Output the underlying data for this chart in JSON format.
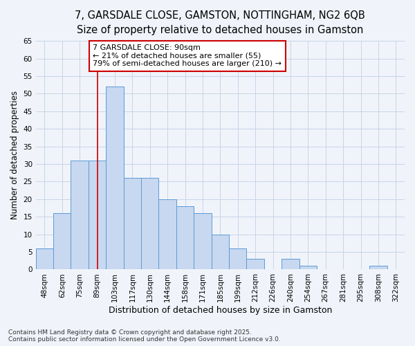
{
  "title1": "7, GARSDALE CLOSE, GAMSTON, NOTTINGHAM, NG2 6QB",
  "title2": "Size of property relative to detached houses in Gamston",
  "xlabel": "Distribution of detached houses by size in Gamston",
  "ylabel": "Number of detached properties",
  "categories": [
    "48sqm",
    "62sqm",
    "75sqm",
    "89sqm",
    "103sqm",
    "117sqm",
    "130sqm",
    "144sqm",
    "158sqm",
    "171sqm",
    "185sqm",
    "199sqm",
    "212sqm",
    "226sqm",
    "240sqm",
    "254sqm",
    "267sqm",
    "281sqm",
    "295sqm",
    "308sqm",
    "322sqm"
  ],
  "values": [
    6,
    16,
    31,
    31,
    52,
    26,
    26,
    20,
    18,
    16,
    10,
    6,
    3,
    0,
    3,
    1,
    0,
    0,
    0,
    1,
    0
  ],
  "bar_color": "#c8d8f0",
  "bar_edge_color": "#5b9bd5",
  "vline_x_idx": 3,
  "vline_color": "#cc0000",
  "annotation_text": "7 GARSDALE CLOSE: 90sqm\n← 21% of detached houses are smaller (55)\n79% of semi-detached houses are larger (210) →",
  "annotation_box_color": "#ffffff",
  "annotation_box_edge_color": "#cc0000",
  "ylim": [
    0,
    65
  ],
  "yticks": [
    0,
    5,
    10,
    15,
    20,
    25,
    30,
    35,
    40,
    45,
    50,
    55,
    60,
    65
  ],
  "grid_color": "#c8d4e8",
  "bg_color": "#f0f4fa",
  "plot_bg_color": "#f0f4fa",
  "footer_text": "Contains HM Land Registry data © Crown copyright and database right 2025.\nContains public sector information licensed under the Open Government Licence v3.0.",
  "title_fontsize": 10.5,
  "subtitle_fontsize": 9.5,
  "tick_fontsize": 7.5,
  "ylabel_fontsize": 8.5,
  "xlabel_fontsize": 9,
  "annotation_fontsize": 8,
  "footer_fontsize": 6.5
}
